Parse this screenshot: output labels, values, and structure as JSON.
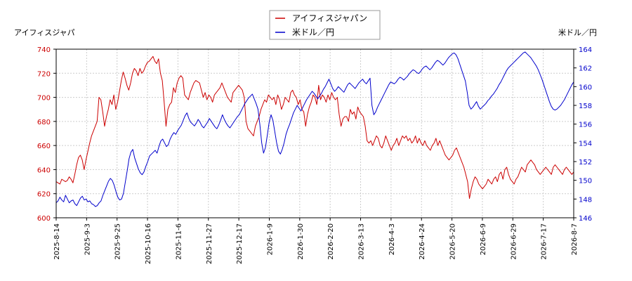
{
  "chart_data": {
    "type": "line",
    "left_axis_label": "アイフィスジャパ",
    "right_axis_label": "米ドル／円",
    "legend": {
      "placement": "top-center"
    },
    "grid": true,
    "x_ticks": [
      "2025-8-14",
      "2025-9-3",
      "2025-9-25",
      "2025-10-16",
      "2025-11-6",
      "2025-11-27",
      "2025-12-17",
      "2026-1-9",
      "2026-1-30",
      "2026-2-20",
      "2026-3-13",
      "2026-4-3",
      "2026-4-24",
      "2026-5-20",
      "2026-6-9",
      "2026-6-29",
      "2026-7-17",
      "2026-8-7"
    ],
    "y_left": {
      "min": 600,
      "max": 740,
      "ticks": [
        "600",
        "620",
        "640",
        "660",
        "680",
        "700",
        "720",
        "740"
      ],
      "color": "#cc0000"
    },
    "y_right": {
      "min": 146,
      "max": 164,
      "ticks": [
        "146",
        "148",
        "150",
        "152",
        "154",
        "156",
        "158",
        "160",
        "162",
        "164"
      ],
      "color": "#0000cc"
    },
    "series": [
      {
        "name": "アイフィスジャパン",
        "axis": "left",
        "color": "#cc0000",
        "values": [
          630,
          629,
          628,
          632,
          631,
          630,
          631,
          634,
          632,
          629,
          636,
          644,
          650,
          652,
          648,
          640,
          648,
          655,
          662,
          668,
          672,
          676,
          680,
          700,
          698,
          688,
          676,
          684,
          690,
          698,
          694,
          702,
          690,
          696,
          705,
          714,
          721,
          716,
          710,
          706,
          712,
          720,
          724,
          722,
          718,
          724,
          720,
          722,
          726,
          729,
          730,
          732,
          734,
          730,
          728,
          732,
          720,
          714,
          696,
          676,
          690,
          694,
          696,
          708,
          704,
          712,
          716,
          718,
          716,
          702,
          700,
          698,
          704,
          708,
          712,
          714,
          713,
          712,
          706,
          700,
          704,
          698,
          702,
          700,
          696,
          702,
          704,
          706,
          708,
          712,
          708,
          704,
          700,
          698,
          696,
          704,
          706,
          708,
          710,
          708,
          706,
          700,
          680,
          674,
          672,
          670,
          668,
          676,
          680,
          684,
          690,
          694,
          698,
          696,
          702,
          700,
          698,
          700,
          694,
          702,
          698,
          690,
          694,
          700,
          698,
          696,
          704,
          706,
          702,
          700,
          694,
          698,
          690,
          688,
          676,
          686,
          692,
          696,
          702,
          700,
          694,
          710,
          698,
          702,
          700,
          696,
          702,
          698,
          704,
          700,
          698,
          700,
          686,
          676,
          682,
          684,
          684,
          680,
          690,
          686,
          688,
          682,
          692,
          688,
          686,
          684,
          676,
          664,
          662,
          664,
          660,
          664,
          668,
          666,
          660,
          658,
          662,
          668,
          664,
          660,
          656,
          660,
          662,
          666,
          660,
          664,
          668,
          666,
          668,
          664,
          666,
          662,
          664,
          668,
          662,
          666,
          662,
          660,
          664,
          660,
          658,
          656,
          660,
          662,
          666,
          660,
          664,
          660,
          656,
          652,
          650,
          648,
          650,
          652,
          656,
          658,
          654,
          650,
          646,
          642,
          636,
          630,
          616,
          624,
          630,
          634,
          632,
          628,
          626,
          624,
          626,
          628,
          632,
          630,
          628,
          632,
          634,
          630,
          636,
          638,
          632,
          640,
          642,
          636,
          632,
          630,
          628,
          632,
          634,
          638,
          642,
          640,
          638,
          644,
          646,
          648,
          646,
          644,
          640,
          638,
          636,
          638,
          640,
          642,
          640,
          638,
          636,
          642,
          644,
          642,
          640,
          638,
          636,
          640,
          642,
          640,
          638,
          636,
          638
        ]
      },
      {
        "name": "米ドル／円",
        "axis": "right",
        "color": "#0000cc",
        "values": [
          147.6,
          147.8,
          148.2,
          147.9,
          147.7,
          148.4,
          148.0,
          147.6,
          147.8,
          147.9,
          147.5,
          147.3,
          147.7,
          148.1,
          148.3,
          147.9,
          148.0,
          147.7,
          147.8,
          147.5,
          147.4,
          147.2,
          147.3,
          147.6,
          147.8,
          148.4,
          148.9,
          149.4,
          149.9,
          150.2,
          150.0,
          149.5,
          148.8,
          148.2,
          147.9,
          148.0,
          148.6,
          149.8,
          151.0,
          152.3,
          153.0,
          153.3,
          152.4,
          151.8,
          151.2,
          150.8,
          150.6,
          150.9,
          151.5,
          152.0,
          152.6,
          152.8,
          153.0,
          153.2,
          152.9,
          153.6,
          154.2,
          154.4,
          154.0,
          153.6,
          153.8,
          154.4,
          154.8,
          155.1,
          154.9,
          155.3,
          155.6,
          155.9,
          156.4,
          156.9,
          157.2,
          156.6,
          156.2,
          156.0,
          155.8,
          156.1,
          156.5,
          156.2,
          155.8,
          155.6,
          155.9,
          156.2,
          156.6,
          156.3,
          156.0,
          155.7,
          155.5,
          155.9,
          156.4,
          157.0,
          156.5,
          156.1,
          155.8,
          155.6,
          155.9,
          156.2,
          156.5,
          156.8,
          157.0,
          157.4,
          157.8,
          158.2,
          158.5,
          158.8,
          159.0,
          159.2,
          158.7,
          158.2,
          157.6,
          156.0,
          154.0,
          152.9,
          153.5,
          154.8,
          156.2,
          157.0,
          156.4,
          155.2,
          154.0,
          153.1,
          152.8,
          153.3,
          154.0,
          154.9,
          155.5,
          156.0,
          156.6,
          157.2,
          157.6,
          158.0,
          157.7,
          157.4,
          157.8,
          158.2,
          158.6,
          158.9,
          159.2,
          159.5,
          159.3,
          159.0,
          158.7,
          159.0,
          159.3,
          159.7,
          160.0,
          160.4,
          160.8,
          160.3,
          159.8,
          159.5,
          159.7,
          160.0,
          159.8,
          159.6,
          159.4,
          159.8,
          160.2,
          160.4,
          160.2,
          160.0,
          159.8,
          160.1,
          160.4,
          160.6,
          160.8,
          160.5,
          160.3,
          160.6,
          160.9,
          158.0,
          157.0,
          157.3,
          157.8,
          158.2,
          158.6,
          159.0,
          159.4,
          159.8,
          160.2,
          160.5,
          160.4,
          160.3,
          160.5,
          160.8,
          161.0,
          160.9,
          160.7,
          160.9,
          161.1,
          161.4,
          161.6,
          161.8,
          161.7,
          161.5,
          161.4,
          161.6,
          161.9,
          162.1,
          162.2,
          162.0,
          161.8,
          162.0,
          162.3,
          162.6,
          162.8,
          162.7,
          162.5,
          162.3,
          162.5,
          162.8,
          163.1,
          163.3,
          163.5,
          163.6,
          163.4,
          163.0,
          162.4,
          161.8,
          161.2,
          160.6,
          159.4,
          158.0,
          157.6,
          157.8,
          158.1,
          158.4,
          157.9,
          157.6,
          157.8,
          158.0,
          158.2,
          158.5,
          158.7,
          159.0,
          159.2,
          159.5,
          159.8,
          160.2,
          160.5,
          160.9,
          161.3,
          161.7,
          162.0,
          162.2,
          162.4,
          162.6,
          162.8,
          163.0,
          163.2,
          163.4,
          163.6,
          163.7,
          163.5,
          163.3,
          163.1,
          162.8,
          162.5,
          162.2,
          161.8,
          161.3,
          160.8,
          160.2,
          159.6,
          159.0,
          158.4,
          157.9,
          157.6,
          157.5,
          157.6,
          157.8,
          158.0,
          158.3,
          158.6,
          159.0,
          159.4,
          159.8,
          160.2,
          160.5
        ]
      }
    ]
  }
}
